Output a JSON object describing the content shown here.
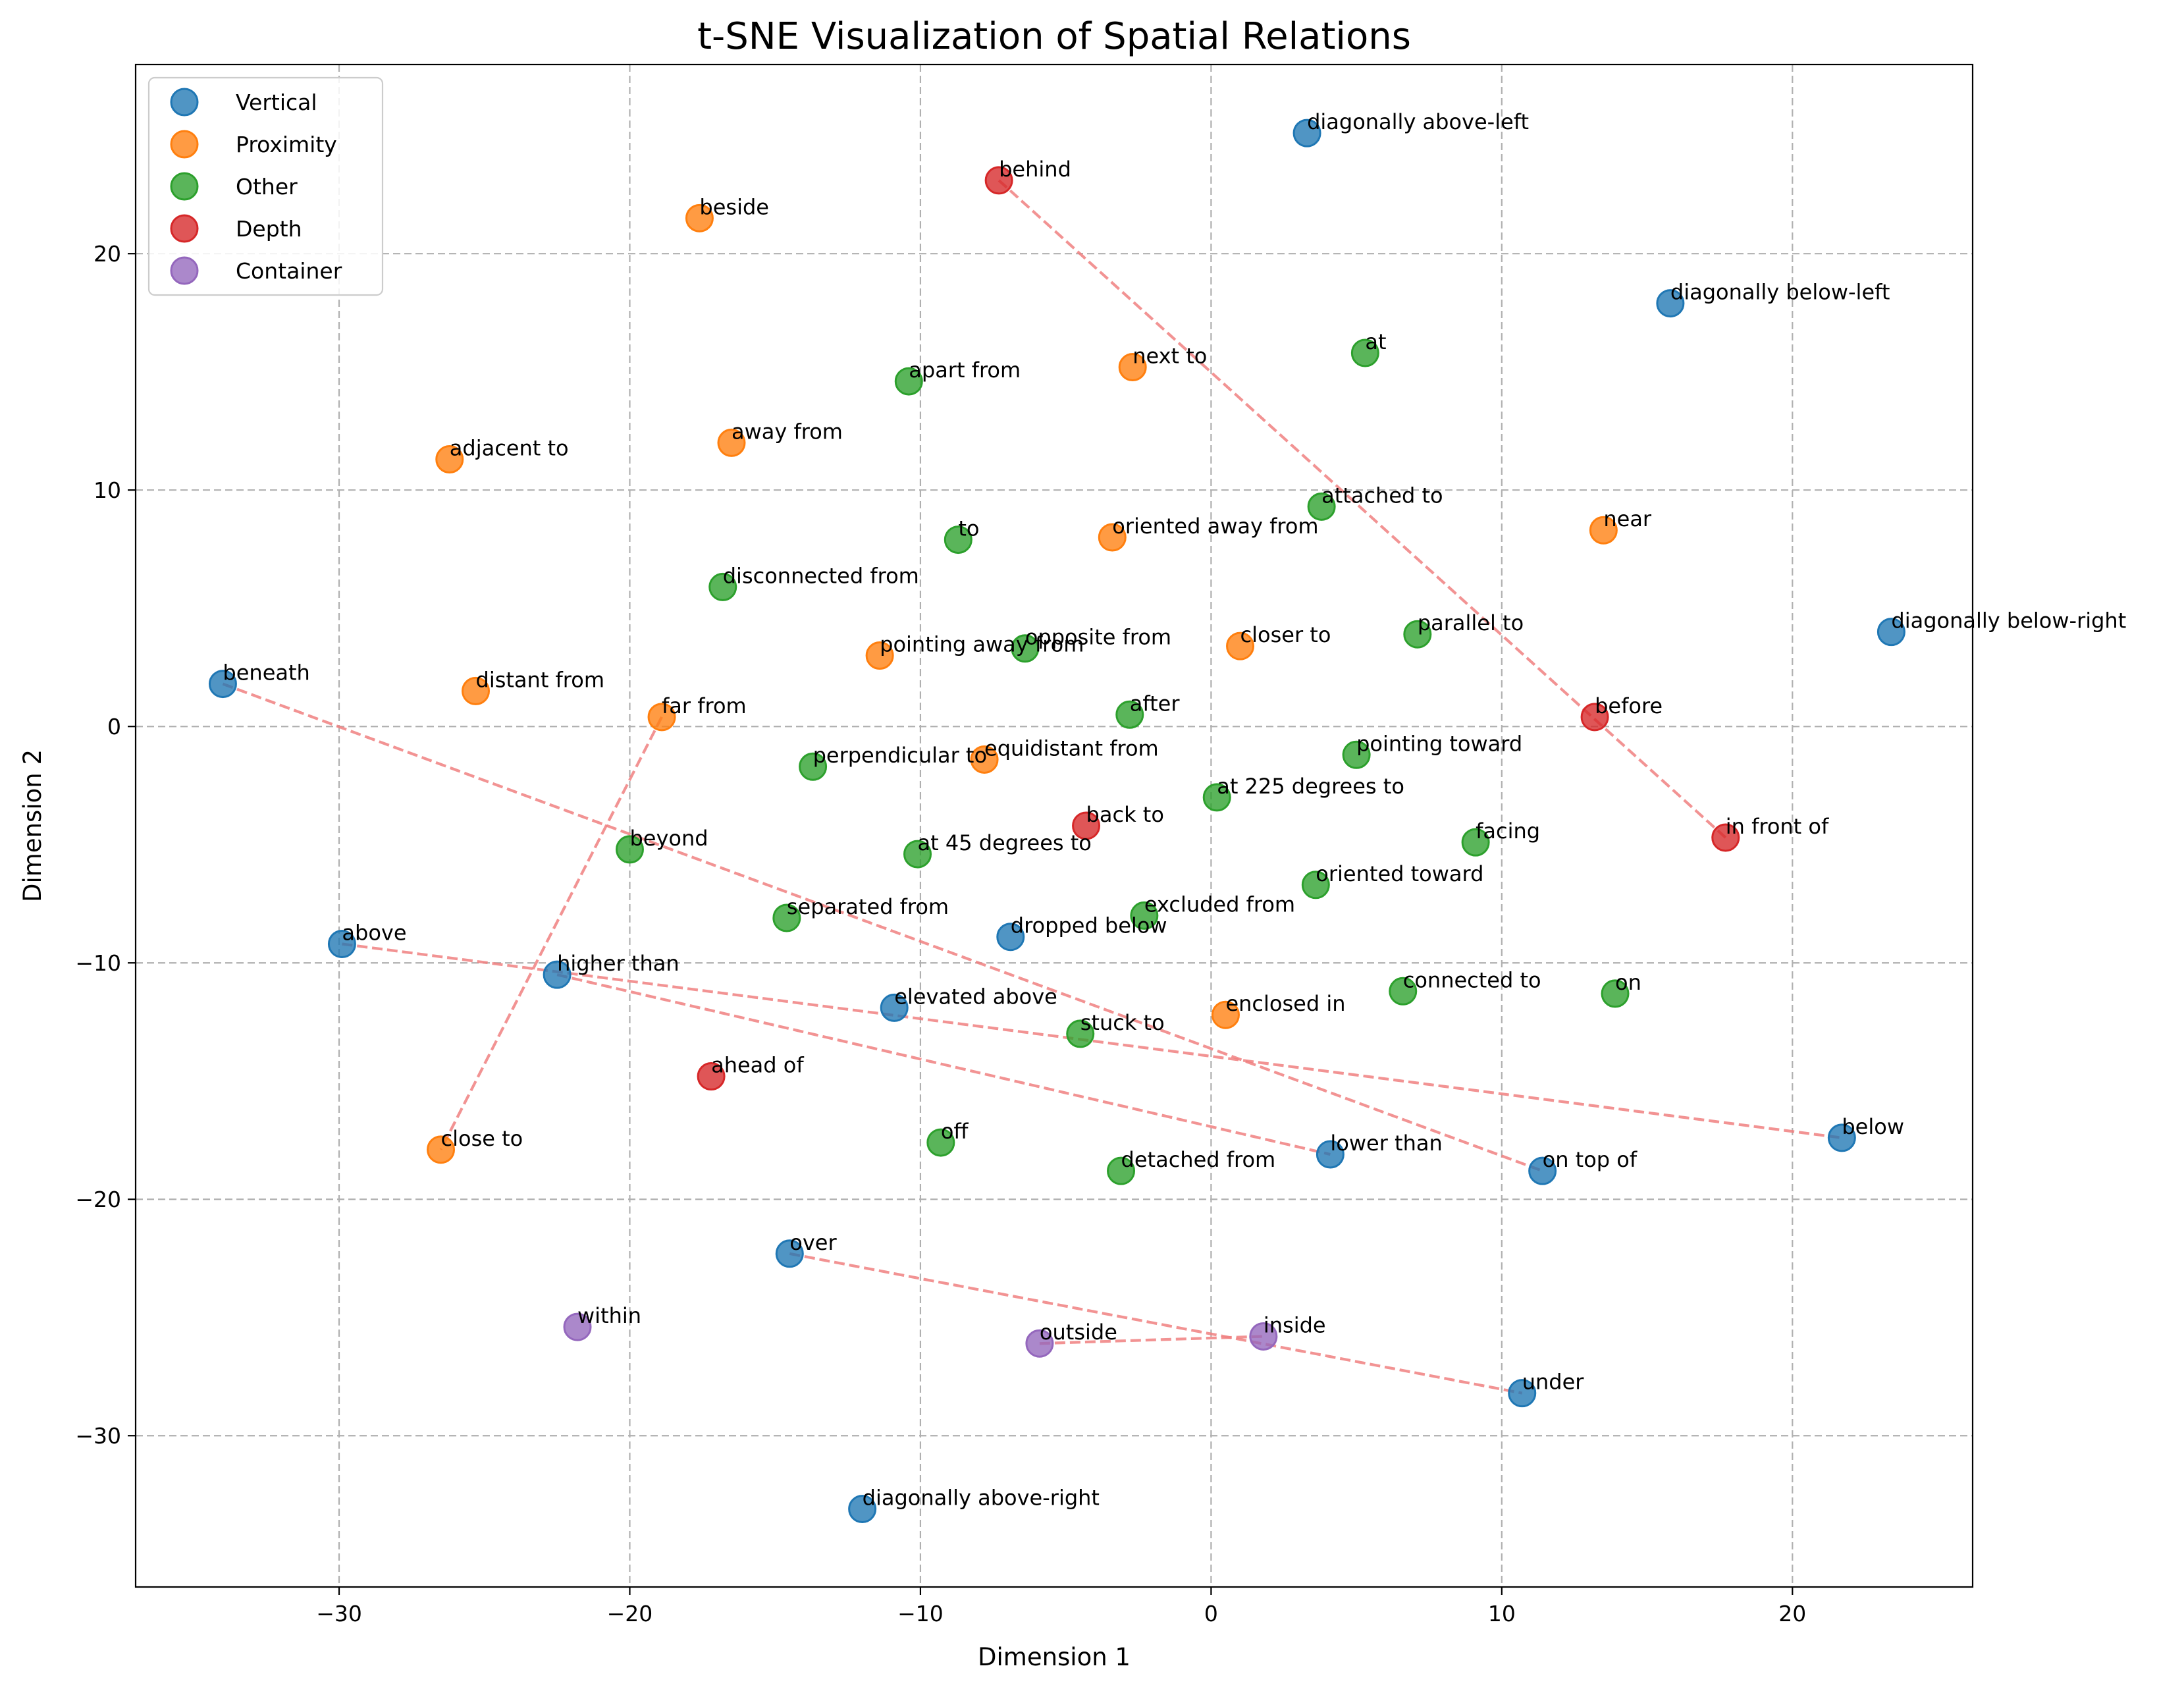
{
  "chart_data": {
    "type": "scatter",
    "title": "t-SNE Visualization of Spatial Relations",
    "xlabel": "Dimension 1",
    "ylabel": "Dimension 2",
    "xlim": [
      -37,
      26.2
    ],
    "ylim": [
      -36.4,
      28
    ],
    "xticks": [
      -30,
      -20,
      -10,
      0,
      10,
      20
    ],
    "yticks": [
      -30,
      -20,
      -10,
      0,
      10,
      20
    ],
    "tick_labels": {
      "x": [
        "−30",
        "−20",
        "−10",
        "0",
        "10",
        "20"
      ],
      "y": [
        "−30",
        "−20",
        "−10",
        "0",
        "10",
        "20"
      ]
    },
    "grid": true,
    "legend_position": "upper-left",
    "series": [
      {
        "name": "Vertical",
        "color": "#1f77b4",
        "points": [
          {
            "label": "diagonally above-left",
            "x": 3.3,
            "y": 25.1
          },
          {
            "label": "diagonally below-left",
            "x": 15.8,
            "y": 17.9
          },
          {
            "label": "diagonally below-right",
            "x": 23.4,
            "y": 4.0
          },
          {
            "label": "beneath",
            "x": -34.0,
            "y": 1.8
          },
          {
            "label": "above",
            "x": -29.9,
            "y": -9.2
          },
          {
            "label": "higher than",
            "x": -22.5,
            "y": -10.5
          },
          {
            "label": "dropped below",
            "x": -6.9,
            "y": -8.9
          },
          {
            "label": "elevated above",
            "x": -10.9,
            "y": -11.9
          },
          {
            "label": "lower than",
            "x": 4.1,
            "y": -18.1
          },
          {
            "label": "on top of",
            "x": 11.4,
            "y": -18.8
          },
          {
            "label": "below",
            "x": 21.7,
            "y": -17.4
          },
          {
            "label": "over",
            "x": -14.5,
            "y": -22.3
          },
          {
            "label": "under",
            "x": 10.7,
            "y": -28.2
          },
          {
            "label": "diagonally above-right",
            "x": -12.0,
            "y": -33.1
          }
        ]
      },
      {
        "name": "Proximity",
        "color": "#ff7f0e",
        "points": [
          {
            "label": "beside",
            "x": -17.6,
            "y": 21.5
          },
          {
            "label": "next to",
            "x": -2.7,
            "y": 15.2
          },
          {
            "label": "adjacent to",
            "x": -26.2,
            "y": 11.3
          },
          {
            "label": "away from",
            "x": -16.5,
            "y": 12.0
          },
          {
            "label": "oriented away from",
            "x": -3.4,
            "y": 8.0
          },
          {
            "label": "near",
            "x": 13.5,
            "y": 8.3
          },
          {
            "label": "closer to",
            "x": 1.0,
            "y": 3.4
          },
          {
            "label": "pointing away from",
            "x": -11.4,
            "y": 3.0
          },
          {
            "label": "distant from",
            "x": -25.3,
            "y": 1.5
          },
          {
            "label": "far from",
            "x": -18.9,
            "y": 0.4
          },
          {
            "label": "equidistant from",
            "x": -7.8,
            "y": -1.4
          },
          {
            "label": "enclosed in",
            "x": 0.5,
            "y": -12.2
          },
          {
            "label": "close to",
            "x": -26.5,
            "y": -17.9
          }
        ]
      },
      {
        "name": "Other",
        "color": "#2ca02c",
        "points": [
          {
            "label": "at",
            "x": 5.3,
            "y": 15.8
          },
          {
            "label": "apart from",
            "x": -10.4,
            "y": 14.6
          },
          {
            "label": "attached to",
            "x": 3.8,
            "y": 9.3
          },
          {
            "label": "to",
            "x": -8.7,
            "y": 7.9
          },
          {
            "label": "disconnected from",
            "x": -16.8,
            "y": 5.9
          },
          {
            "label": "opposite from",
            "x": -6.4,
            "y": 3.3
          },
          {
            "label": "parallel to",
            "x": 7.1,
            "y": 3.9
          },
          {
            "label": "after",
            "x": -2.8,
            "y": 0.5
          },
          {
            "label": "perpendicular to",
            "x": -13.7,
            "y": -1.7
          },
          {
            "label": "pointing toward",
            "x": 5.0,
            "y": -1.2
          },
          {
            "label": "at 225 degrees to",
            "x": 0.2,
            "y": -3.0
          },
          {
            "label": "beyond",
            "x": -20.0,
            "y": -5.2
          },
          {
            "label": "at 45 degrees to",
            "x": -10.1,
            "y": -5.4
          },
          {
            "label": "facing",
            "x": 9.1,
            "y": -4.9
          },
          {
            "label": "oriented toward",
            "x": 3.6,
            "y": -6.7
          },
          {
            "label": "separated from",
            "x": -14.6,
            "y": -8.1
          },
          {
            "label": "excluded from",
            "x": -2.3,
            "y": -8.0
          },
          {
            "label": "connected to",
            "x": 6.6,
            "y": -11.2
          },
          {
            "label": "on",
            "x": 13.9,
            "y": -11.3
          },
          {
            "label": "stuck to",
            "x": -4.5,
            "y": -13.0
          },
          {
            "label": "off",
            "x": -9.3,
            "y": -17.6
          },
          {
            "label": "detached from",
            "x": -3.1,
            "y": -18.8
          }
        ]
      },
      {
        "name": "Depth",
        "color": "#d62728",
        "points": [
          {
            "label": "behind",
            "x": -7.3,
            "y": 23.1
          },
          {
            "label": "before",
            "x": 13.2,
            "y": 0.4
          },
          {
            "label": "in front of",
            "x": 17.7,
            "y": -4.7
          },
          {
            "label": "back to",
            "x": -4.3,
            "y": -4.2
          },
          {
            "label": "ahead of",
            "x": -17.2,
            "y": -14.8
          }
        ]
      },
      {
        "name": "Container",
        "color": "#9467bd",
        "points": [
          {
            "label": "within",
            "x": -21.8,
            "y": -25.4
          },
          {
            "label": "outside",
            "x": -5.9,
            "y": -26.1
          },
          {
            "label": "inside",
            "x": 1.8,
            "y": -25.8
          }
        ]
      }
    ],
    "pair_lines": [
      {
        "from": "behind",
        "to": "in front of"
      },
      {
        "from": "beneath",
        "to": "on top of"
      },
      {
        "from": "above",
        "to": "below"
      },
      {
        "from": "higher than",
        "to": "lower than"
      },
      {
        "from": "far from",
        "to": "close to"
      },
      {
        "from": "over",
        "to": "under"
      },
      {
        "from": "outside",
        "to": "inside"
      }
    ]
  }
}
